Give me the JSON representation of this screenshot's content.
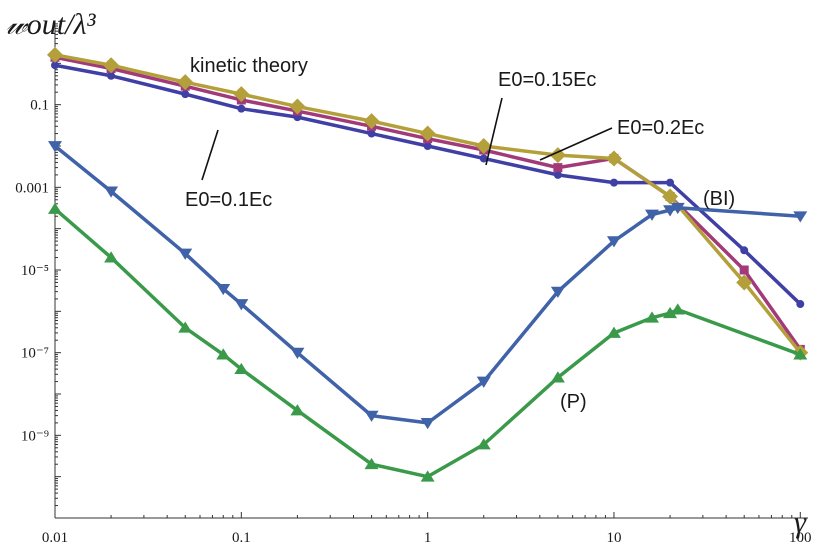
{
  "chart_data": {
    "type": "line",
    "ylabel": "𝓌out/λ³",
    "xlabel": "γ",
    "x_scale": "log",
    "y_scale": "log",
    "xlim": [
      0.01,
      110
    ],
    "ylim": [
      1e-11,
      10
    ],
    "x_ticks": [
      {
        "value": 0.01,
        "label": "0.01"
      },
      {
        "value": 0.1,
        "label": "0.1"
      },
      {
        "value": 1,
        "label": "1"
      },
      {
        "value": 10,
        "label": "10"
      },
      {
        "value": 100,
        "label": "100"
      }
    ],
    "y_ticks": [
      {
        "value": 0.1,
        "label": "0.1"
      },
      {
        "value": 0.001,
        "label": "0.001"
      },
      {
        "value": 1e-05,
        "label": "10⁻⁵"
      },
      {
        "value": 1e-07,
        "label": "10⁻⁷"
      },
      {
        "value": 1e-09,
        "label": "10⁻⁹"
      }
    ],
    "series": [
      {
        "name": "E0=0.1Ec",
        "color": "#3f3fa6",
        "marker": "circle",
        "x": [
          0.01,
          0.02,
          0.05,
          0.1,
          0.2,
          0.5,
          1,
          2,
          5,
          10,
          20,
          50,
          100
        ],
        "y": [
          0.9,
          0.5,
          0.18,
          0.08,
          0.05,
          0.02,
          0.01,
          0.005,
          0.002,
          0.0013,
          0.0013,
          3e-05,
          1.5e-06
        ]
      },
      {
        "name": "E0=0.15Ec",
        "color": "#a23a7a",
        "marker": "square",
        "x": [
          0.01,
          0.02,
          0.05,
          0.1,
          0.2,
          0.5,
          1,
          2,
          5,
          10,
          20,
          50,
          100
        ],
        "y": [
          1.4,
          0.75,
          0.28,
          0.13,
          0.07,
          0.03,
          0.015,
          0.008,
          0.003,
          0.005,
          0.0006,
          1e-05,
          1.2e-07
        ]
      },
      {
        "name": "E0=0.2Ec",
        "color": "#b3a03a",
        "marker": "diamond",
        "x": [
          0.01,
          0.02,
          0.05,
          0.1,
          0.2,
          0.5,
          1,
          2,
          5,
          10,
          20,
          50,
          100
        ],
        "y": [
          1.6,
          0.9,
          0.35,
          0.18,
          0.09,
          0.04,
          0.02,
          0.01,
          0.006,
          0.005,
          0.0006,
          5e-06,
          1e-07
        ]
      },
      {
        "name": "(BI)",
        "color": "#3f62a8",
        "marker": "triangle-down",
        "x": [
          0.01,
          0.02,
          0.05,
          0.08,
          0.1,
          0.2,
          0.5,
          1,
          2,
          5,
          10,
          16,
          20,
          22,
          100
        ],
        "y": [
          0.01,
          0.0008,
          2.5e-05,
          3.5e-06,
          1.5e-06,
          1e-07,
          3e-09,
          2e-09,
          2e-08,
          3e-06,
          5e-05,
          0.00022,
          0.00028,
          0.00032,
          0.0002
        ]
      },
      {
        "name": "(P)",
        "color": "#3a9a4a",
        "marker": "triangle-up",
        "x": [
          0.01,
          0.02,
          0.05,
          0.08,
          0.1,
          0.2,
          0.5,
          1,
          2,
          5,
          10,
          16,
          20,
          22,
          100
        ],
        "y": [
          0.0003,
          2e-05,
          4e-07,
          9e-08,
          4e-08,
          4e-09,
          2e-10,
          1e-10,
          6e-10,
          2.5e-08,
          3e-07,
          7e-07,
          9e-07,
          1.1e-06,
          9e-08
        ]
      }
    ],
    "annotations": [
      {
        "text": "kinetic  theory"
      },
      {
        "text": "E0=0.15Ec"
      },
      {
        "text": "E0=0.2Ec"
      },
      {
        "text": "E0=0.1Ec"
      },
      {
        "text": "(BI)"
      },
      {
        "text": "(P)"
      }
    ],
    "grid": false
  }
}
